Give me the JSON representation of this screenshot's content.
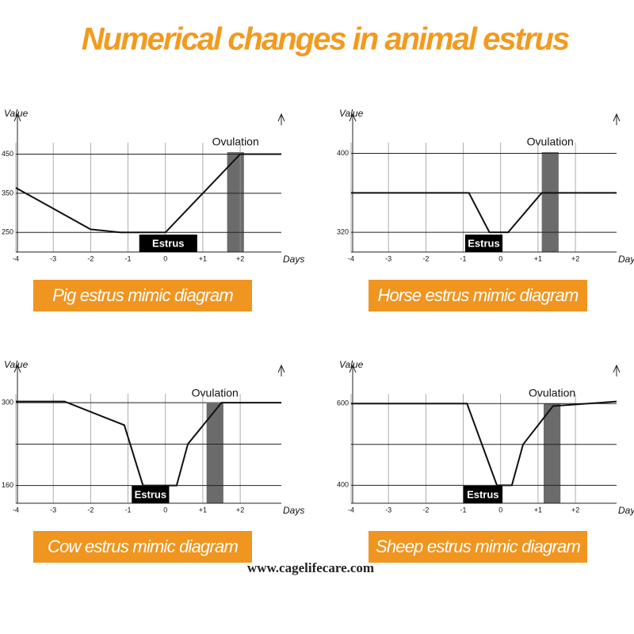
{
  "title": "Numerical changes in animal estrus",
  "watermark": "www.cagelifecare.com",
  "chart_data": [
    {
      "type": "line",
      "caption": "Pig estrus mimic diagram",
      "ylabel": "Value",
      "xlabel": "Days",
      "x": [
        -4,
        -2,
        -1.2,
        0,
        2,
        3.1
      ],
      "values": [
        364,
        258,
        250,
        250,
        450,
        450
      ],
      "xlim": [
        -4,
        3.1
      ],
      "ylim": [
        200,
        540
      ],
      "xticks": [
        -4,
        -3,
        -2,
        -1,
        0,
        {
          "value": 1,
          "label": "+1"
        },
        {
          "value": 2,
          "label": "+2"
        }
      ],
      "yticks": [
        250,
        350,
        450
      ],
      "gridlines": [
        250,
        350,
        450
      ],
      "estrus": {
        "label": "Estrus",
        "range": [
          -0.7,
          0.85
        ]
      },
      "ovulation": {
        "label": "Ovulation",
        "range": [
          1.65,
          2.1
        ]
      }
    },
    {
      "type": "line",
      "caption": "Horse estrus mimic diagram",
      "ylabel": "Value",
      "xlabel": "Days",
      "x": [
        -4,
        -0.85,
        -0.3,
        0.2,
        1.1,
        3.1
      ],
      "values": [
        360,
        360,
        320,
        320,
        360,
        360
      ],
      "xlim": [
        -4,
        3.1
      ],
      "ylim": [
        300,
        435
      ],
      "xticks": [
        -4,
        -3,
        -2,
        -1,
        0,
        {
          "value": 1,
          "label": "+1"
        },
        {
          "value": 2,
          "label": "+2"
        }
      ],
      "yticks": [
        320,
        400
      ],
      "gridlines": [
        320,
        360,
        400
      ],
      "estrus": {
        "label": "Estrus",
        "range": [
          -0.95,
          0.05
        ]
      },
      "ovulation": {
        "label": "Ovulation",
        "range": [
          1.1,
          1.55
        ]
      }
    },
    {
      "type": "line",
      "caption": "Cow estrus mimic diagram",
      "ylabel": "Value",
      "xlabel": "Days",
      "x": [
        -4,
        -2.7,
        -1.1,
        -0.6,
        0.3,
        0.6,
        1.5,
        3.1
      ],
      "values": [
        302,
        302,
        262,
        160,
        160,
        230,
        300,
        300
      ],
      "xlim": [
        -4,
        3.1
      ],
      "ylim": [
        130,
        355
      ],
      "xticks": [
        -4,
        -3,
        -2,
        -1,
        0,
        {
          "value": 1,
          "label": "+1"
        },
        {
          "value": 2,
          "label": "+2"
        }
      ],
      "yticks": [
        160,
        300
      ],
      "gridlines": [
        160,
        230,
        300
      ],
      "estrus": {
        "label": "Estrus",
        "range": [
          -0.9,
          0.1
        ]
      },
      "ovulation": {
        "label": "Ovulation",
        "range": [
          1.1,
          1.55
        ]
      }
    },
    {
      "type": "line",
      "caption": "Sheep estrus mimic diagram",
      "ylabel": "Value",
      "xlabel": "Days",
      "x": [
        -4,
        -0.9,
        -0.1,
        0.3,
        0.6,
        1.4,
        3.1
      ],
      "values": [
        600,
        600,
        400,
        400,
        500,
        594,
        605
      ],
      "xlim": [
        -4,
        3.1
      ],
      "ylim": [
        356,
        682
      ],
      "xticks": [
        -4,
        -3,
        -2,
        -1,
        0,
        {
          "value": 1,
          "label": "+1"
        },
        {
          "value": 2,
          "label": "+2"
        }
      ],
      "yticks": [
        400,
        600
      ],
      "gridlines": [
        400,
        500,
        600
      ],
      "estrus": {
        "label": "Estrus",
        "range": [
          -1,
          0.05
        ]
      },
      "ovulation": {
        "label": "Ovulation",
        "range": [
          1.15,
          1.6
        ]
      }
    }
  ]
}
